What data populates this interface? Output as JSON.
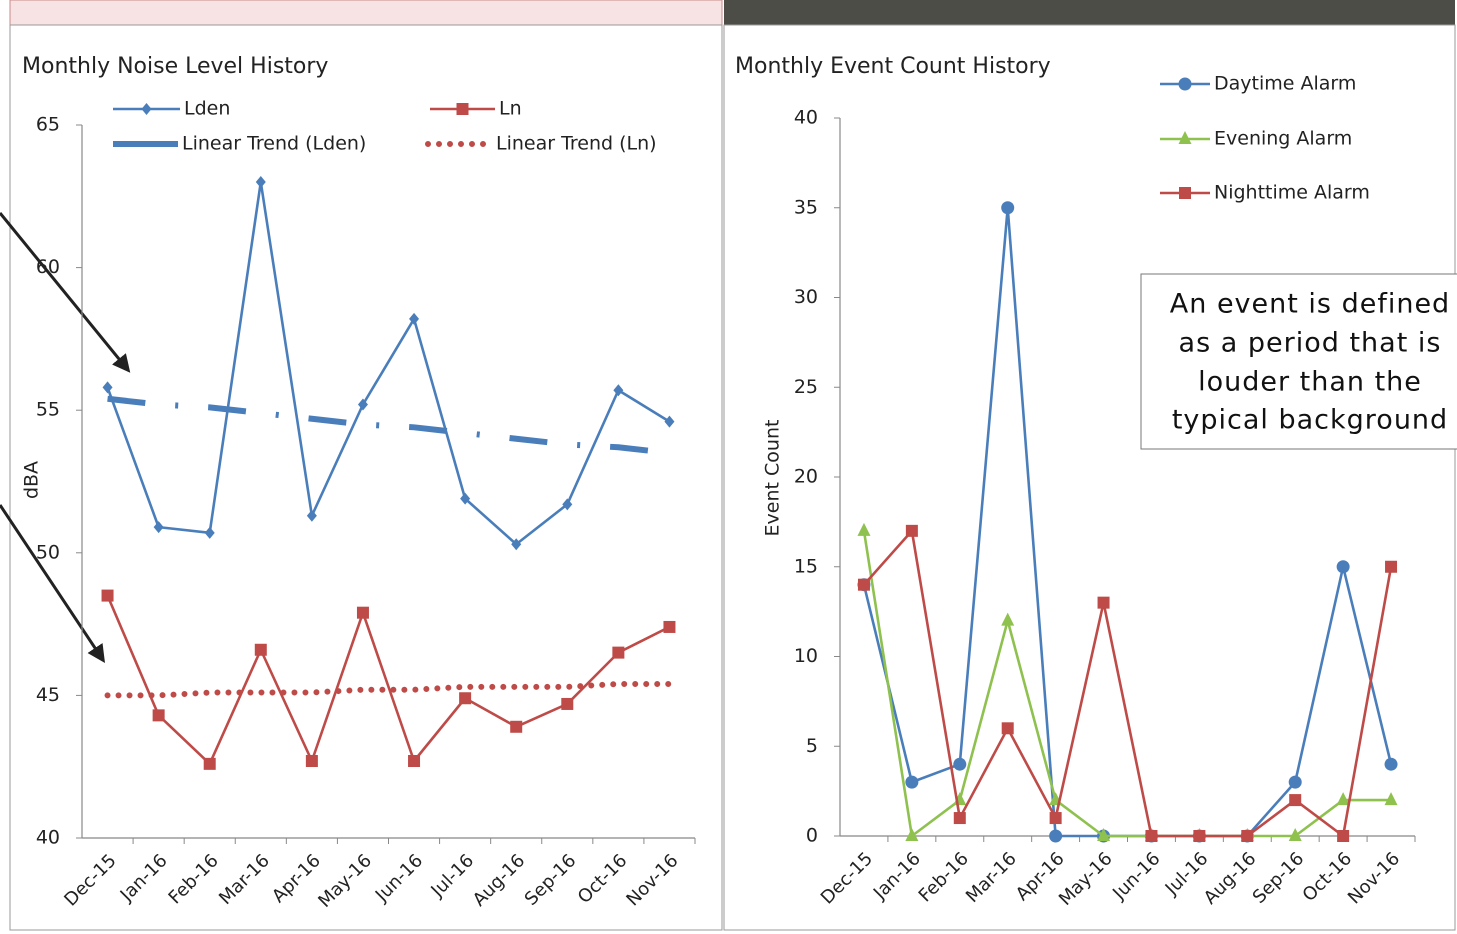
{
  "chart_data": [
    {
      "type": "line",
      "title": "Monthly Noise Level History",
      "y_label": "dBA",
      "categories": [
        "Dec-15",
        "Jan-16",
        "Feb-16",
        "Mar-16",
        "Apr-16",
        "May-16",
        "Jun-16",
        "Jul-16",
        "Aug-16",
        "Sep-16",
        "Oct-16",
        "Nov-16"
      ],
      "series": [
        {
          "name": "Lden",
          "color": "#4a7ebb",
          "marker": "diamond",
          "style": "solid",
          "values": [
            55.8,
            50.9,
            50.7,
            63.0,
            51.3,
            55.2,
            58.2,
            51.9,
            50.3,
            51.7,
            55.7,
            54.6
          ]
        },
        {
          "name": "Ln",
          "color": "#be4b48",
          "marker": "square",
          "style": "solid",
          "values": [
            48.5,
            44.3,
            42.6,
            46.6,
            42.7,
            47.9,
            42.7,
            44.9,
            43.9,
            44.7,
            46.5,
            47.4
          ]
        },
        {
          "name": "Linear Trend (Lden)",
          "color": "#4a7ebb",
          "marker": "none",
          "style": "dashdot",
          "values": [
            55.4,
            55.2,
            55.1,
            54.9,
            54.7,
            54.5,
            54.4,
            54.2,
            54.0,
            53.8,
            53.7,
            53.5
          ]
        },
        {
          "name": "Linear Trend (Ln)",
          "color": "#be4b48",
          "marker": "none",
          "style": "dotted",
          "values": [
            45.0,
            45.0,
            45.1,
            45.1,
            45.1,
            45.2,
            45.2,
            45.3,
            45.3,
            45.3,
            45.4,
            45.4
          ]
        }
      ],
      "ylim": [
        40,
        65
      ],
      "yticks": [
        40,
        45,
        50,
        55,
        60,
        65
      ],
      "grid": false
    },
    {
      "type": "line",
      "title": "Monthly Event Count History",
      "y_label": "Event Count",
      "categories": [
        "Dec-15",
        "Jan-16",
        "Feb-16",
        "Mar-16",
        "Apr-16",
        "May-16",
        "Jun-16",
        "Jul-16",
        "Aug-16",
        "Sep-16",
        "Oct-16",
        "Nov-16"
      ],
      "series": [
        {
          "name": "Daytime Alarm",
          "color": "#4a7ebb",
          "marker": "circle",
          "style": "solid",
          "values": [
            14,
            3,
            4,
            35,
            0,
            0,
            0,
            0,
            0,
            3,
            15,
            4
          ]
        },
        {
          "name": "Evening Alarm",
          "color": "#8fc14f",
          "marker": "triangle",
          "style": "solid",
          "values": [
            17,
            0,
            2,
            12,
            2,
            0,
            0,
            0,
            0,
            0,
            2,
            2
          ]
        },
        {
          "name": "Nighttime Alarm",
          "color": "#be4b48",
          "marker": "square",
          "style": "solid",
          "values": [
            14,
            17,
            1,
            6,
            1,
            13,
            0,
            0,
            0,
            2,
            0,
            15
          ]
        }
      ],
      "ylim": [
        0,
        40
      ],
      "yticks": [
        0,
        5,
        10,
        15,
        20,
        25,
        30,
        35,
        40
      ],
      "grid": false,
      "annotation": [
        "An event is defined",
        "as a period that is",
        "louder than the",
        "typical background"
      ]
    }
  ]
}
